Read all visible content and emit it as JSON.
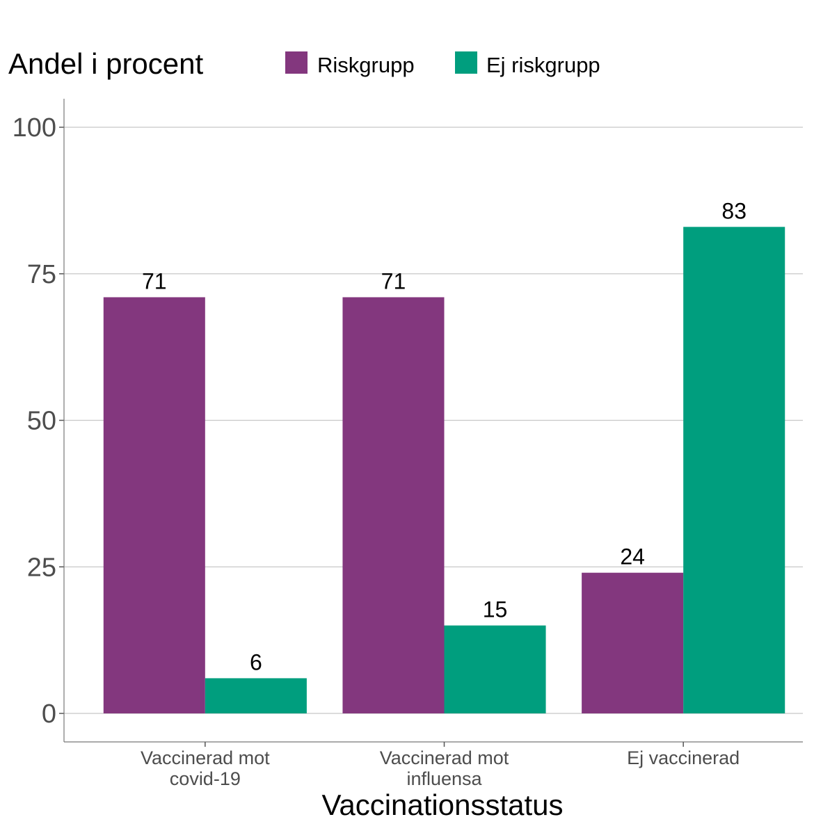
{
  "chart_data": {
    "type": "bar",
    "ylabel": "Andel i procent",
    "xlabel": "Vaccinationsstatus",
    "categories": [
      [
        "Vaccinerad mot",
        "covid-19"
      ],
      [
        "Vaccinerad mot",
        "influensa"
      ],
      [
        "Ej vaccinerad"
      ]
    ],
    "series": [
      {
        "name": "Riskgrupp",
        "color": "#83377e",
        "values": [
          71,
          71,
          24
        ]
      },
      {
        "name": "Ej riskgrupp",
        "color": "#009e7e",
        "values": [
          6,
          15,
          83
        ]
      }
    ],
    "ylim": [
      0,
      100
    ],
    "yticks": [
      0,
      25,
      50,
      75,
      100
    ],
    "grid": true,
    "legend_position": "top",
    "data_labels": true
  }
}
